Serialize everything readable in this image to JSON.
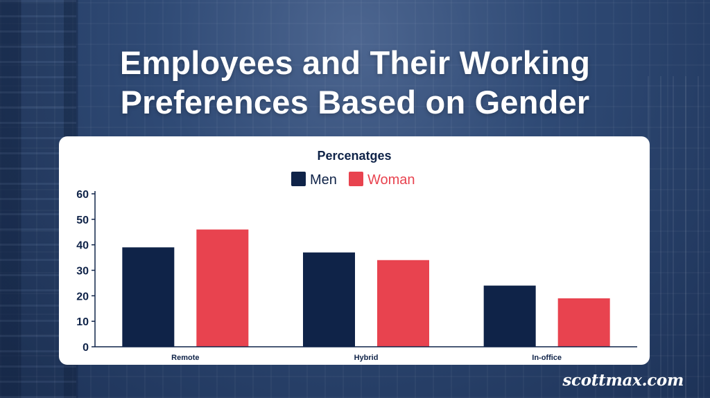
{
  "title_lines": [
    "Employees and Their Working",
    "Preferences Based on Gender"
  ],
  "watermark": "scottmax.com",
  "chart_data": {
    "type": "bar",
    "title": "Percenatges",
    "categories": [
      "Remote",
      "Hybrid",
      "In-office"
    ],
    "series": [
      {
        "name": "Men",
        "color": "#0f2348",
        "values": [
          39,
          37,
          24
        ]
      },
      {
        "name": "Woman",
        "color": "#e8434f",
        "values": [
          46,
          34,
          19
        ]
      }
    ],
    "ylim": [
      0,
      60
    ],
    "yticks": [
      0,
      10,
      20,
      30,
      40,
      50,
      60
    ],
    "legend": "top-center",
    "grid": false
  }
}
